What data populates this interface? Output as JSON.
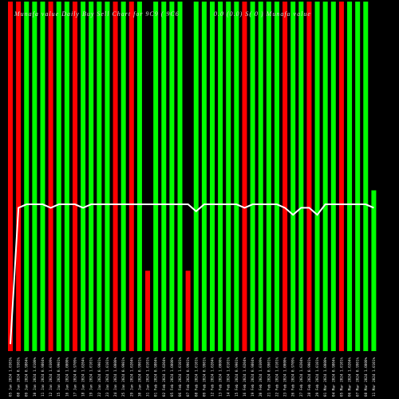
{
  "title_left": "Munafa value Daily Buy Sell Chart for 9C9 ( 9C6",
  "title_right": "0.0 (0.0) S( 0 ) Munafa value",
  "colors": {
    "background": "#000000",
    "up": "#00ff00",
    "down": "#ff0000",
    "line": "#ffffff"
  },
  "chart_data": {
    "type": "bar",
    "title": "Munafa value Daily Buy Sell Chart for 9C9 ( 9C6 0.0 (0.0) S( 0 ) Munafa value",
    "categories": [
      "05 Jan 2024 1.0303%",
      "08 Jan 2024 0.9302%",
      "09 Jan 2024 0.9804%",
      "10 Jan 2024 1.0100%",
      "11 Jan 2024 0.9804%",
      "12 Jan 2024 1.0309%",
      "15 Jan 2024 0.9901%",
      "16 Jan 2024 1.0000%",
      "17 Jan 2024 0.9709%",
      "18 Jan 2024 1.0204%",
      "19 Jan 2024 1.0101%",
      "22 Jan 2024 0.9901%",
      "23 Jan 2024 1.0101%",
      "24 Jan 2024 1.0000%",
      "25 Jan 2024 0.9901%",
      "29 Jan 2024 1.0204%",
      "30 Jan 2024 0.9901%",
      "31 Jan 2024 1.0101%",
      "01 Feb 2024 0.9804%",
      "02 Feb 2024 1.0204%",
      "05 Feb 2024 1.0000%",
      "06 Feb 2024 1.0101%",
      "07 Feb 2024 0.9901%",
      "08 Feb 2024 1.0101%",
      "09 Feb 2024 0.9901%",
      "12 Feb 2024 1.0204%",
      "13 Feb 2024 1.0000%",
      "14 Feb 2024 1.0101%",
      "15 Feb 2024 0.9901%",
      "16 Feb 2024 1.0204%",
      "19 Feb 2024 0.9804%",
      "20 Feb 2024 1.0309%",
      "21 Feb 2024 0.9901%",
      "22 Feb 2024 1.0101%",
      "23 Feb 2024 1.0000%",
      "26 Feb 2024 0.9709%",
      "27 Feb 2024 1.0204%",
      "28 Feb 2024 0.9901%",
      "29 Feb 2024 1.0101%",
      "01 Mar 2024 1.0000%",
      "04 Mar 2024 0.9804%",
      "05 Mar 2024 1.0101%",
      "06 Mar 2024 1.0204%",
      "07 Mar 2024 0.9901%",
      "08 Mar 2024 1.0000%",
      "11 Mar 2024 1.0101%"
    ],
    "series": [
      {
        "colors": [
          "red",
          "red",
          "green",
          "green",
          "green",
          "red",
          "green",
          "green",
          "red",
          "green",
          "green",
          "green",
          "green",
          "red",
          "green",
          "red",
          "green",
          "red",
          "green",
          "green",
          "green",
          "green",
          "red",
          "green",
          "green",
          "green",
          "green",
          "green",
          "green",
          "red",
          "green",
          "green",
          "green",
          "green",
          "red",
          "green",
          "green",
          "red",
          "green",
          "green",
          "green",
          "red",
          "green",
          "green",
          "green",
          "green"
        ],
        "values": [
          100,
          100,
          100,
          100,
          100,
          100,
          100,
          100,
          100,
          100,
          100,
          100,
          100,
          100,
          100,
          100,
          100,
          23,
          100,
          100,
          100,
          100,
          23,
          100,
          100,
          100,
          100,
          100,
          100,
          100,
          100,
          100,
          100,
          100,
          100,
          100,
          100,
          100,
          100,
          100,
          100,
          100,
          100,
          100,
          100,
          46
        ]
      },
      {
        "type": "line",
        "values": [
          2,
          41,
          42,
          42,
          42,
          41,
          42,
          42,
          42,
          41,
          42,
          42,
          42,
          42,
          42,
          42,
          42,
          42,
          42,
          42,
          42,
          42,
          42,
          40,
          42,
          42,
          42,
          42,
          42,
          41,
          42,
          42,
          42,
          42,
          41,
          39,
          41,
          41,
          39,
          42,
          42,
          42,
          42,
          42,
          42,
          41
        ]
      }
    ],
    "ylim": [
      0,
      100
    ],
    "grid": false,
    "legend": "none"
  }
}
